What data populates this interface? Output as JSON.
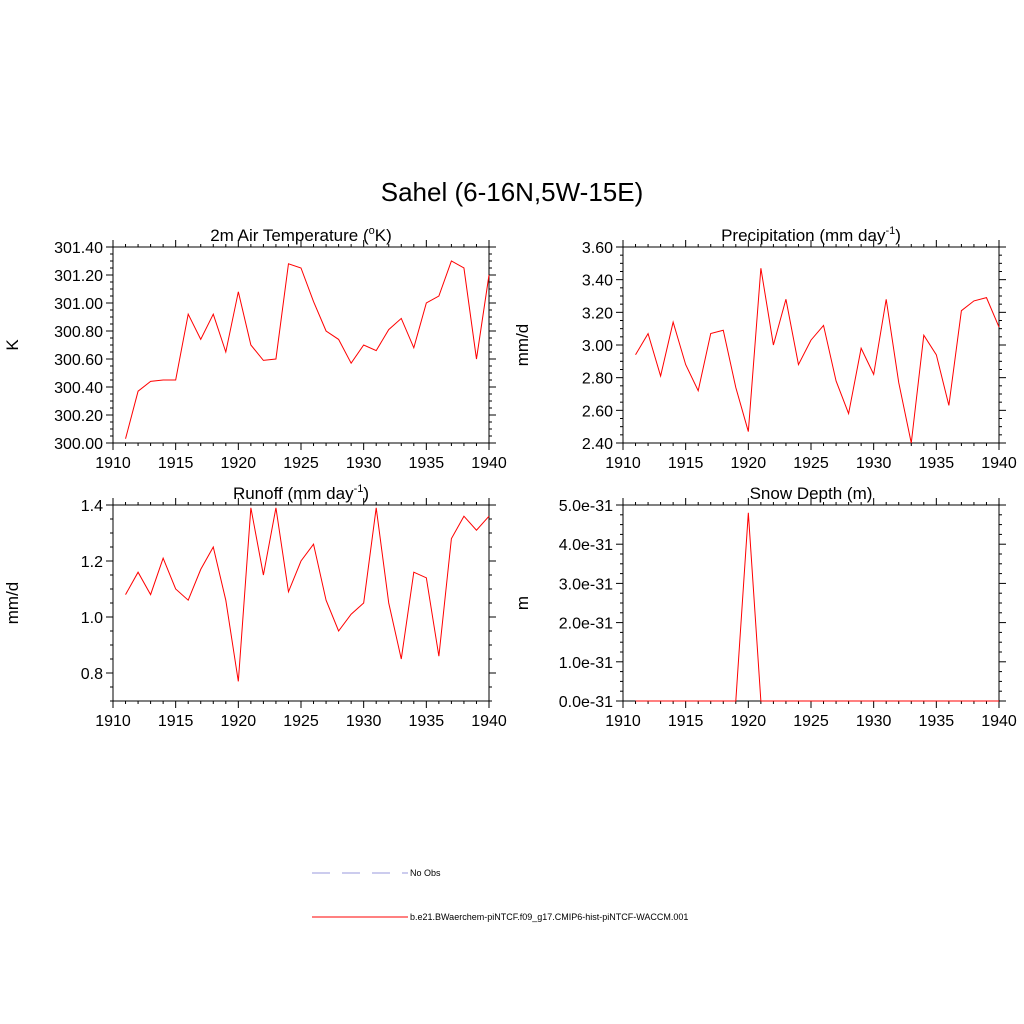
{
  "page": {
    "title": "Sahel (6-16N,5W-15E)"
  },
  "colors": {
    "series": "#ff0000",
    "obs": "#9999dd",
    "axis": "#000000"
  },
  "legend": {
    "obs_label": "No Obs",
    "model_label": "b.e21.BWaerchem-piNTCF.f09_g17.CMIP6-hist-piNTCF-WACCM.001"
  },
  "chart_data": [
    {
      "type": "line",
      "title": "2m Air Temperature (",
      "title_sup": "o",
      "title_tail": "K)",
      "ylabel": "K",
      "xlim": [
        1910,
        1940
      ],
      "ylim": [
        300.0,
        301.4
      ],
      "x_ticks": [
        1910,
        1915,
        1920,
        1925,
        1930,
        1935,
        1940
      ],
      "y_ticks": [
        "300.00",
        "300.20",
        "300.40",
        "300.60",
        "300.80",
        "301.00",
        "301.20",
        "301.40"
      ],
      "y_tick_values": [
        300.0,
        300.2,
        300.4,
        300.6,
        300.8,
        301.0,
        301.2,
        301.4
      ],
      "series": [
        {
          "name": "b.e21.BWaerchem-piNTCF.f09_g17.CMIP6-hist-piNTCF-WACCM.001",
          "x": [
            1911,
            1912,
            1913,
            1914,
            1915,
            1916,
            1917,
            1918,
            1919,
            1920,
            1921,
            1922,
            1923,
            1924,
            1925,
            1926,
            1927,
            1928,
            1929,
            1930,
            1931,
            1932,
            1933,
            1934,
            1935,
            1936,
            1937,
            1938,
            1939,
            1940
          ],
          "values": [
            300.03,
            300.37,
            300.44,
            300.45,
            300.45,
            300.92,
            300.74,
            300.92,
            300.65,
            301.08,
            300.7,
            300.59,
            300.6,
            301.28,
            301.25,
            301.01,
            300.8,
            300.74,
            300.57,
            300.7,
            300.66,
            300.81,
            300.89,
            300.68,
            301.0,
            301.05,
            301.3,
            301.25,
            300.6,
            301.2
          ]
        }
      ]
    },
    {
      "type": "line",
      "title": "Precipitation (mm day",
      "title_sup": "-1",
      "title_tail": ")",
      "ylabel": "mm/d",
      "xlim": [
        1910,
        1940
      ],
      "ylim": [
        2.4,
        3.6
      ],
      "x_ticks": [
        1910,
        1915,
        1920,
        1925,
        1930,
        1935,
        1940
      ],
      "y_ticks": [
        "2.40",
        "2.60",
        "2.80",
        "3.00",
        "3.20",
        "3.40",
        "3.60"
      ],
      "y_tick_values": [
        2.4,
        2.6,
        2.8,
        3.0,
        3.2,
        3.4,
        3.6
      ],
      "series": [
        {
          "name": "b.e21.BWaerchem-piNTCF.f09_g17.CMIP6-hist-piNTCF-WACCM.001",
          "x": [
            1911,
            1912,
            1913,
            1914,
            1915,
            1916,
            1917,
            1918,
            1919,
            1920,
            1921,
            1922,
            1923,
            1924,
            1925,
            1926,
            1927,
            1928,
            1929,
            1930,
            1931,
            1932,
            1933,
            1934,
            1935,
            1936,
            1937,
            1938,
            1939,
            1940
          ],
          "values": [
            2.94,
            3.07,
            2.81,
            3.14,
            2.88,
            2.72,
            3.07,
            3.09,
            2.74,
            2.47,
            3.47,
            3.0,
            3.28,
            2.88,
            3.03,
            3.12,
            2.78,
            2.58,
            2.98,
            2.82,
            3.28,
            2.77,
            2.4,
            3.06,
            2.94,
            2.63,
            3.21,
            3.27,
            3.29,
            3.11
          ]
        }
      ]
    },
    {
      "type": "line",
      "title": "Runoff (mm day",
      "title_sup": "-1",
      "title_tail": ")",
      "ylabel": "mm/d",
      "xlim": [
        1910,
        1940
      ],
      "ylim": [
        0.7,
        1.4
      ],
      "x_ticks": [
        1910,
        1915,
        1920,
        1925,
        1930,
        1935,
        1940
      ],
      "y_ticks": [
        "0.8",
        "1.0",
        "1.2",
        "1.4"
      ],
      "y_tick_values": [
        0.8,
        1.0,
        1.2,
        1.4
      ],
      "series": [
        {
          "name": "b.e21.BWaerchem-piNTCF.f09_g17.CMIP6-hist-piNTCF-WACCM.001",
          "x": [
            1911,
            1912,
            1913,
            1914,
            1915,
            1916,
            1917,
            1918,
            1919,
            1920,
            1921,
            1922,
            1923,
            1924,
            1925,
            1926,
            1927,
            1928,
            1929,
            1930,
            1931,
            1932,
            1933,
            1934,
            1935,
            1936,
            1937,
            1938,
            1939,
            1940
          ],
          "values": [
            1.08,
            1.16,
            1.08,
            1.21,
            1.1,
            1.06,
            1.17,
            1.25,
            1.06,
            0.77,
            1.39,
            1.15,
            1.39,
            1.09,
            1.2,
            1.26,
            1.06,
            0.95,
            1.01,
            1.05,
            1.39,
            1.05,
            0.85,
            1.16,
            1.14,
            0.86,
            1.28,
            1.36,
            1.31,
            1.36
          ]
        }
      ]
    },
    {
      "type": "line",
      "title": "Snow Depth (m)",
      "title_sup": "",
      "title_tail": "",
      "ylabel": "m",
      "xlim": [
        1910,
        1940
      ],
      "ylim": [
        0.0,
        5.0
      ],
      "y_unit_note": "values in units of 1e-31 m",
      "x_ticks": [
        1910,
        1915,
        1920,
        1925,
        1930,
        1935,
        1940
      ],
      "y_ticks": [
        "0.0e-31",
        "1.0e-31",
        "2.0e-31",
        "3.0e-31",
        "4.0e-31",
        "5.0e-31"
      ],
      "y_tick_values": [
        0.0,
        1.0,
        2.0,
        3.0,
        4.0,
        5.0
      ],
      "series": [
        {
          "name": "b.e21.BWaerchem-piNTCF.f09_g17.CMIP6-hist-piNTCF-WACCM.001",
          "x": [
            1911,
            1912,
            1913,
            1914,
            1915,
            1916,
            1917,
            1918,
            1919,
            1920,
            1921,
            1922,
            1923,
            1924,
            1925,
            1926,
            1927,
            1928,
            1929,
            1930,
            1931,
            1932,
            1933,
            1934,
            1935,
            1936,
            1937,
            1938,
            1939,
            1940
          ],
          "values": [
            0,
            0,
            0,
            0,
            0,
            0,
            0,
            0,
            0,
            4.8,
            0,
            0,
            0,
            0,
            0,
            0,
            0,
            0,
            0,
            0,
            0,
            0,
            0,
            0,
            0,
            0,
            0,
            0,
            0,
            0
          ]
        }
      ]
    }
  ]
}
